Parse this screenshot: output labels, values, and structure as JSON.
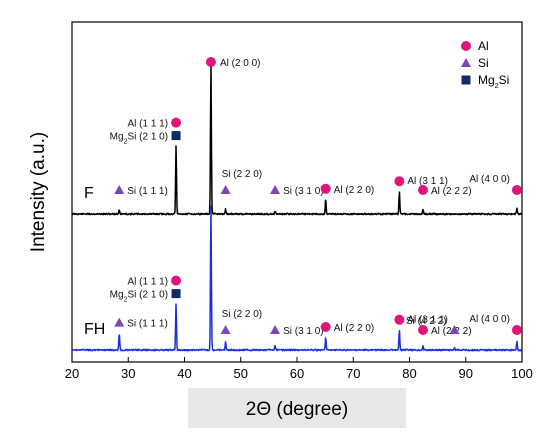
{
  "chart_data": {
    "type": "line",
    "xlabel": "2Θ (degree)",
    "ylabel": "Intensity (a.u.)",
    "xlim": [
      20,
      100
    ],
    "x_ticks": [
      20,
      30,
      40,
      50,
      60,
      70,
      80,
      90,
      100
    ],
    "series": [
      {
        "name": "F",
        "color": "#000000",
        "peaks": [
          {
            "x": 28.4,
            "h": 0.03
          },
          {
            "x": 38.5,
            "h": 0.45
          },
          {
            "x": 44.7,
            "h": 1.0
          },
          {
            "x": 47.3,
            "h": 0.03
          },
          {
            "x": 56.1,
            "h": 0.02
          },
          {
            "x": 65.1,
            "h": 0.1
          },
          {
            "x": 78.2,
            "h": 0.15
          },
          {
            "x": 82.4,
            "h": 0.03
          },
          {
            "x": 99.1,
            "h": 0.04
          }
        ]
      },
      {
        "name": "FH",
        "color": "#1a2fe0",
        "peaks": [
          {
            "x": 28.4,
            "h": 0.12
          },
          {
            "x": 38.5,
            "h": 0.32
          },
          {
            "x": 44.7,
            "h": 1.0
          },
          {
            "x": 47.3,
            "h": 0.06
          },
          {
            "x": 56.1,
            "h": 0.03
          },
          {
            "x": 65.1,
            "h": 0.09
          },
          {
            "x": 78.2,
            "h": 0.14
          },
          {
            "x": 82.4,
            "h": 0.03
          },
          {
            "x": 88.0,
            "h": 0.02
          },
          {
            "x": 99.1,
            "h": 0.06
          }
        ]
      }
    ],
    "legend": {
      "placement": "top-right",
      "entries": [
        {
          "label": "Al",
          "marker": "circle",
          "color": "#e0157a"
        },
        {
          "label": "Si",
          "marker": "triangle",
          "color": "#7b46b8"
        },
        {
          "label": "Mg2Si",
          "marker": "square",
          "color": "#0d2b66"
        }
      ]
    },
    "annotations": {
      "F": [
        {
          "text": "Si (1 1 1)",
          "marker": "triangle",
          "x": 28.4
        },
        {
          "text": "Mg2Si (2 1 0)",
          "marker": "square",
          "x": 38.5
        },
        {
          "text": "Al (1 1 1)",
          "marker": "circle",
          "x": 38.5
        },
        {
          "text": "Al (2 0 0)",
          "marker": "circle",
          "x": 44.7
        },
        {
          "text": "Si (2 2 0)",
          "marker": "triangle",
          "x": 47.3
        },
        {
          "text": "Si (3 1 0)",
          "marker": "triangle",
          "x": 56.1
        },
        {
          "text": "Al (2 2 0)",
          "marker": "circle",
          "x": 65.1
        },
        {
          "text": "Al (3 1 1)",
          "marker": "circle",
          "x": 78.2
        },
        {
          "text": "Al (2 2 2)",
          "marker": "circle",
          "x": 82.4
        },
        {
          "text": "Al (4 0 0)",
          "marker": "circle",
          "x": 99.1
        }
      ],
      "FH": [
        {
          "text": "Si (1 1 1)",
          "marker": "triangle",
          "x": 28.4
        },
        {
          "text": "Mg2Si (2 1 0)",
          "marker": "square",
          "x": 38.5
        },
        {
          "text": "Al (1 1 1)",
          "marker": "circle",
          "x": 38.5
        },
        {
          "text": "Si (2 2 0)",
          "marker": "triangle",
          "x": 47.3
        },
        {
          "text": "Si (3 1 0)",
          "marker": "triangle",
          "x": 56.1
        },
        {
          "text": "Al (2 2 0)",
          "marker": "circle",
          "x": 65.1
        },
        {
          "text": "Al (3 1 1)",
          "marker": "circle",
          "x": 78.2
        },
        {
          "text": "Al (2 2 2)",
          "marker": "circle",
          "x": 82.4
        },
        {
          "text": "Si (4 2 2)",
          "marker": "triangle",
          "x": 88.0
        },
        {
          "text": "Al (4 0 0)",
          "marker": "circle",
          "x": 99.1
        }
      ]
    }
  }
}
